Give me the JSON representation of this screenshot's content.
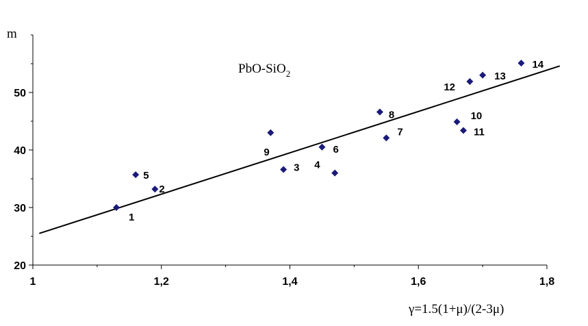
{
  "chart_data": {
    "type": "scatter",
    "annotation_main": "PbO-SiO",
    "annotation_sub": "2",
    "ylabel": "m",
    "xlabel": "γ=1.5(1+μ)/(2-3μ)",
    "xlim": [
      1.0,
      1.8
    ],
    "ylim": [
      20,
      60
    ],
    "x_ticks": [
      {
        "value": 1.0,
        "label": "1"
      },
      {
        "value": 1.2,
        "label": "1,2"
      },
      {
        "value": 1.4,
        "label": "1,4"
      },
      {
        "value": 1.6,
        "label": "1,6"
      },
      {
        "value": 1.8,
        "label": "1,8"
      }
    ],
    "y_ticks": [
      {
        "value": 20,
        "label": "20"
      },
      {
        "value": 30,
        "label": "30"
      },
      {
        "value": 40,
        "label": "40"
      },
      {
        "value": 50,
        "label": "50"
      }
    ],
    "points": [
      {
        "label": "1",
        "x": 1.13,
        "y": 30.0
      },
      {
        "label": "2",
        "x": 1.19,
        "y": 33.2
      },
      {
        "label": "3",
        "x": 1.39,
        "y": 36.6
      },
      {
        "label": "4",
        "x": 1.47,
        "y": 36.0
      },
      {
        "label": "5",
        "x": 1.16,
        "y": 35.7
      },
      {
        "label": "6",
        "x": 1.45,
        "y": 40.5
      },
      {
        "label": "7",
        "x": 1.55,
        "y": 42.1
      },
      {
        "label": "8",
        "x": 1.54,
        "y": 46.6
      },
      {
        "label": "9",
        "x": 1.37,
        "y": 43.0
      },
      {
        "label": "10",
        "x": 1.66,
        "y": 44.9
      },
      {
        "label": "11",
        "x": 1.67,
        "y": 43.4
      },
      {
        "label": "12",
        "x": 1.68,
        "y": 51.9
      },
      {
        "label": "13",
        "x": 1.7,
        "y": 53.0
      },
      {
        "label": "14",
        "x": 1.76,
        "y": 55.1
      }
    ],
    "trendline": {
      "x": [
        1.01,
        1.82
      ],
      "y": [
        25.5,
        54.6
      ]
    },
    "marker_color": "#1a1a7a",
    "line_color": "#000000",
    "grid": false,
    "legend": "none"
  }
}
